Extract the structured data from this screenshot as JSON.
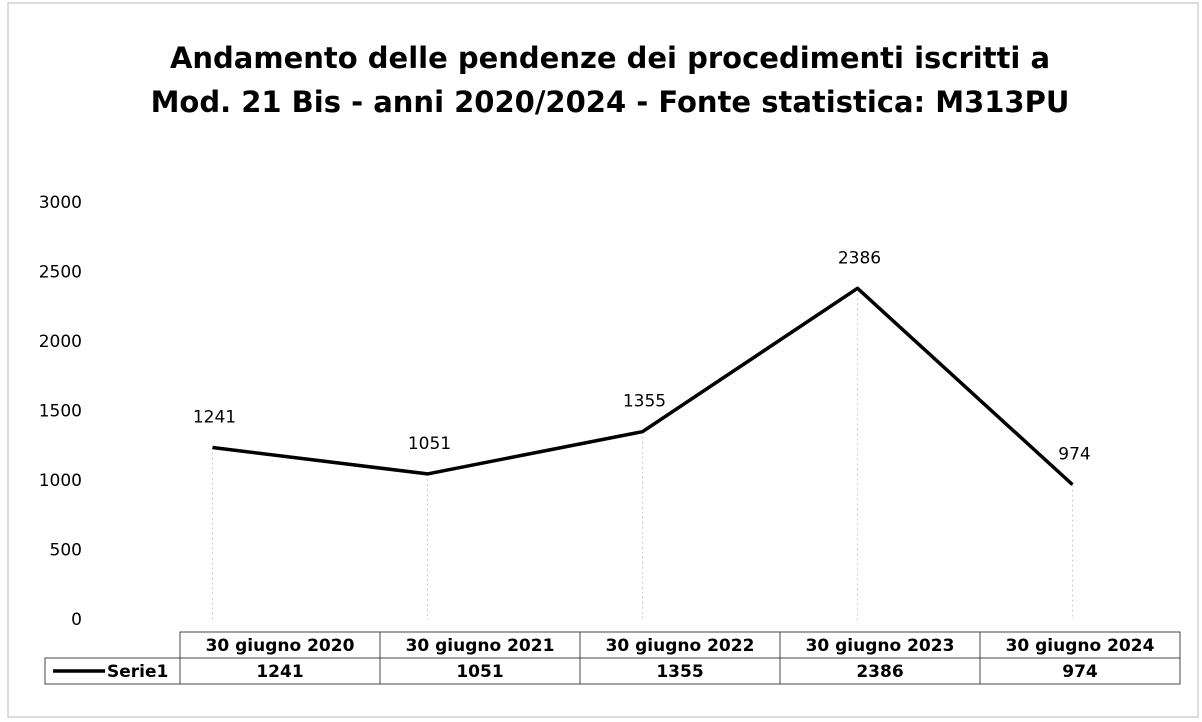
{
  "chart_data": {
    "type": "line",
    "title": [
      "Andamento delle pendenze dei procedimenti iscritti a",
      "Mod. 21 Bis - anni 2020/2024 - Fonte statistica: M313PU"
    ],
    "categories": [
      "30 giugno 2020",
      "30 giugno 2021",
      "30 giugno 2022",
      "30 giugno 2023",
      "30 giugno 2024"
    ],
    "series": [
      {
        "name": "Serie1",
        "color": "#000000",
        "values": [
          1241,
          1051,
          1355,
          2386,
          974
        ]
      }
    ],
    "ylim": [
      0,
      3000
    ],
    "yticks": [
      0,
      500,
      1000,
      1500,
      2000,
      2500,
      3000
    ],
    "data_labels": true,
    "data_table": true
  }
}
